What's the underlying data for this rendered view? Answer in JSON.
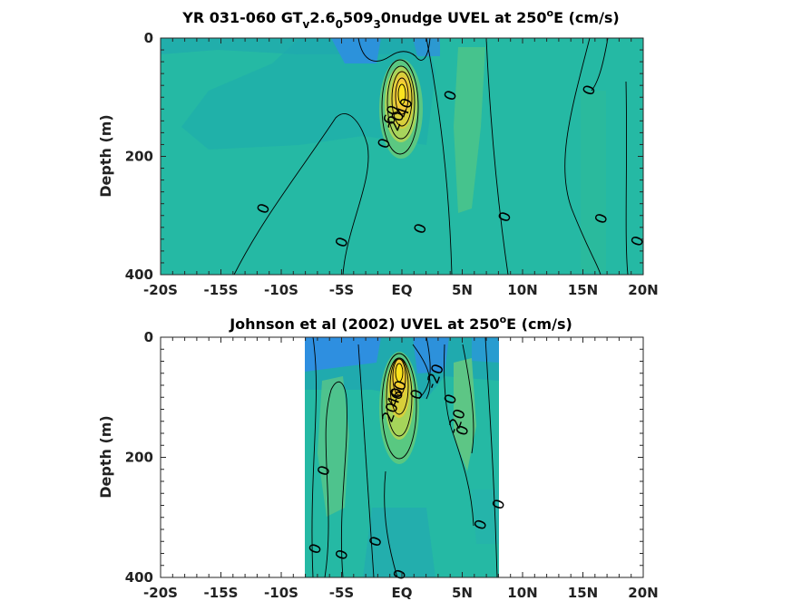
{
  "colors": {
    "background_field": "#25b9a4",
    "axis": "#262626"
  },
  "chart_data": [
    {
      "type": "heatmap",
      "title": "YR 031-060 GT_v2.6_0509_3 0nudge UVEL at 250°E (cm/s)",
      "title_parts": {
        "a": "YR 031-060 GT",
        "b": "v",
        "c": "2.6",
        "d": "0",
        "e": "509",
        "f": "3",
        "g": "0nudge UVEL at 250",
        "h": "o",
        "i": "E (cm/s)"
      },
      "xlabel": "",
      "ylabel": "Depth (m)",
      "x_ticks": [
        "-20S",
        "-15S",
        "-10S",
        "-5S",
        "EQ",
        "5N",
        "10N",
        "15N",
        "20N"
      ],
      "x_tick_values": [
        -20,
        -15,
        -10,
        -5,
        0,
        5,
        10,
        15,
        20
      ],
      "y_ticks": [
        "0",
        "200",
        "400"
      ],
      "y_tick_values": [
        0,
        200,
        400
      ],
      "xlim": [
        -20,
        20
      ],
      "ylim": [
        0,
        400
      ],
      "y_reversed": true,
      "data_extent_x": [
        -20,
        20
      ],
      "core": {
        "lat": 0,
        "depth": 100,
        "max_cm_s": 90
      },
      "contour_labels": [
        {
          "text": "0",
          "lat": -11.5,
          "depth": 288
        },
        {
          "text": "0",
          "lat": -5,
          "depth": 345
        },
        {
          "text": "0",
          "lat": -1.5,
          "depth": 178
        },
        {
          "text": "0",
          "lat": 1.5,
          "depth": 322
        },
        {
          "text": "0",
          "lat": 4,
          "depth": 97
        },
        {
          "text": "0",
          "lat": 8.5,
          "depth": 302
        },
        {
          "text": "0",
          "lat": 15.5,
          "depth": 88
        },
        {
          "text": "0",
          "lat": 16.5,
          "depth": 305
        },
        {
          "text": "0",
          "lat": 19.5,
          "depth": 343
        },
        {
          "text": "40",
          "lat": 0.2,
          "depth": 118
        },
        {
          "text": "20",
          "lat": -0.5,
          "depth": 140
        },
        {
          "text": "60",
          "lat": -0.9,
          "depth": 130
        }
      ]
    },
    {
      "type": "heatmap",
      "title": "Johnson et al (2002) UVEL at 250°E (cm/s)",
      "title_parts": {
        "a": "Johnson et al (2002) UVEL at 250",
        "h": "o",
        "i": "E (cm/s)"
      },
      "xlabel": "",
      "ylabel": "Depth (m)",
      "x_ticks": [
        "-20S",
        "-15S",
        "-10S",
        "-5S",
        "EQ",
        "5N",
        "10N",
        "15N",
        "20N"
      ],
      "x_tick_values": [
        -20,
        -15,
        -10,
        -5,
        0,
        5,
        10,
        15,
        20
      ],
      "y_ticks": [
        "0",
        "200",
        "400"
      ],
      "y_tick_values": [
        0,
        200,
        400
      ],
      "xlim": [
        -20,
        20
      ],
      "ylim": [
        0,
        400
      ],
      "y_reversed": true,
      "data_extent_x": [
        -8,
        8
      ],
      "core": {
        "lat": -0.3,
        "depth": 70,
        "max_cm_s": 110
      },
      "contour_labels": [
        {
          "text": "0",
          "lat": -6.5,
          "depth": 222
        },
        {
          "text": "0",
          "lat": -7.2,
          "depth": 352
        },
        {
          "text": "0",
          "lat": -5,
          "depth": 362
        },
        {
          "text": "0",
          "lat": -2.2,
          "depth": 340
        },
        {
          "text": "0",
          "lat": -0.2,
          "depth": 395
        },
        {
          "text": "0",
          "lat": 1.2,
          "depth": 95
        },
        {
          "text": "0",
          "lat": 4,
          "depth": 103
        },
        {
          "text": "0",
          "lat": 6.5,
          "depth": 312
        },
        {
          "text": "0",
          "lat": 8,
          "depth": 278
        },
        {
          "text": "0",
          "lat": 5,
          "depth": 155
        },
        {
          "text": "-20",
          "lat": 2.7,
          "depth": 65
        },
        {
          "text": "-20",
          "lat": 4.5,
          "depth": 140
        },
        {
          "text": "40",
          "lat": -0.6,
          "depth": 100
        },
        {
          "text": "20",
          "lat": -1.0,
          "depth": 125
        },
        {
          "text": "60",
          "lat": -0.3,
          "depth": 88
        }
      ]
    }
  ]
}
